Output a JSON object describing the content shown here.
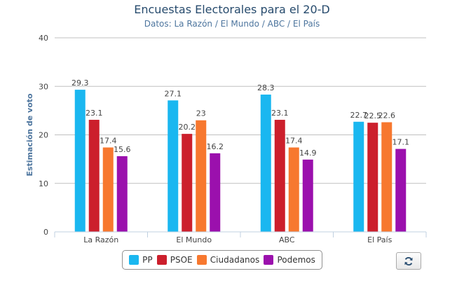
{
  "chart_data": {
    "type": "bar",
    "title": "Encuestas Electorales para el 20-D",
    "subtitle": "Datos: La Razón / El Mundo / ABC / El País",
    "xlabel": "",
    "ylabel": "Estimación de voto",
    "ylim": [
      0,
      40
    ],
    "yticks": [
      "0",
      "10",
      "20",
      "30",
      "40"
    ],
    "grid": true,
    "legend_position": "bottom-center",
    "categories": [
      "La Razón",
      "El Mundo",
      "ABC",
      "El País"
    ],
    "series": [
      {
        "name": "PP",
        "color": "#1ab7f0",
        "values": [
          29.3,
          27.1,
          28.3,
          22.7
        ]
      },
      {
        "name": "PSOE",
        "color": "#cc1f2c",
        "values": [
          23.1,
          20.2,
          23.1,
          22.5
        ]
      },
      {
        "name": "Ciudadanos",
        "color": "#f7782f",
        "values": [
          17.4,
          23,
          17.4,
          22.6
        ]
      },
      {
        "name": "Podemos",
        "color": "#9b10ad",
        "values": [
          15.6,
          16.2,
          14.9,
          17.1
        ]
      }
    ]
  },
  "controls": {
    "refresh_icon": "refresh-icon"
  }
}
